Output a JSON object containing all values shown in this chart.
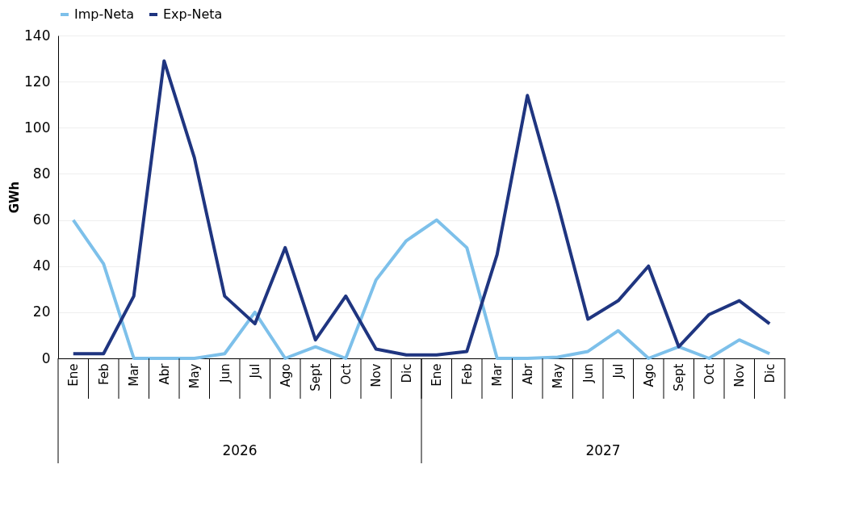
{
  "chart_data": {
    "type": "line",
    "ylabel": "GWh",
    "categories": [
      "Ene",
      "Feb",
      "Mar",
      "Abr",
      "May",
      "Jun",
      "Jul",
      "Ago",
      "Sept",
      "Oct",
      "Nov",
      "Dic",
      "Ene",
      "Feb",
      "Mar",
      "Abr",
      "May",
      "Jun",
      "Jul",
      "Ago",
      "Sept",
      "Oct",
      "Nov",
      "Dic"
    ],
    "series": [
      {
        "name": "Imp-Neta",
        "color": "#7dc0ea",
        "values": [
          60,
          41,
          0,
          0,
          0,
          2,
          20,
          0,
          5,
          0,
          34,
          51,
          60,
          48,
          0,
          0,
          0.5,
          3,
          12,
          0,
          5,
          0,
          8,
          2
        ]
      },
      {
        "name": "Exp-Neta",
        "color": "#1f3580",
        "values": [
          2,
          2,
          27,
          129,
          87,
          27,
          15,
          48,
          8,
          27,
          4,
          1.5,
          1.5,
          3,
          45,
          114,
          67,
          17,
          25,
          40,
          5,
          19,
          25,
          15
        ]
      }
    ],
    "annotations": [
      "2026",
      "2027"
    ],
    "ylim": [
      0,
      140
    ],
    "yticks": [
      0,
      20,
      40,
      60,
      80,
      100,
      120,
      140
    ],
    "grid": "y",
    "legend": "top",
    "marker": "none",
    "line_style": "solid"
  }
}
